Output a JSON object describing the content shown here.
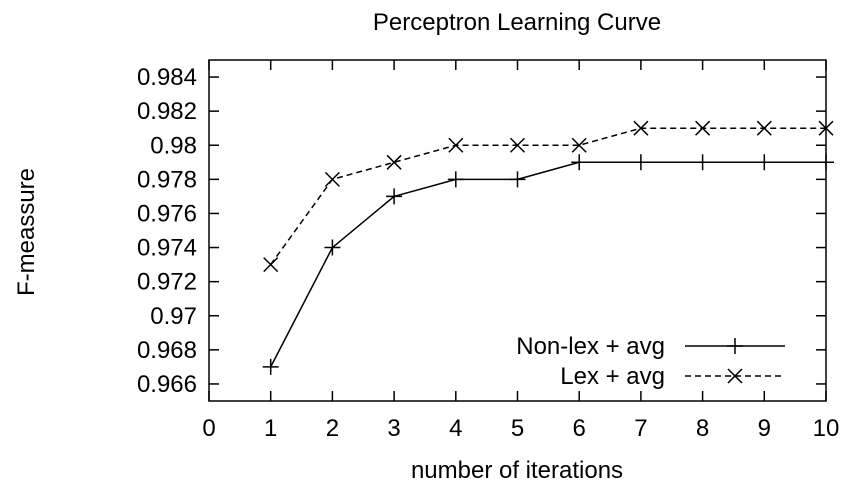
{
  "chart_data": {
    "type": "line",
    "title": "Perceptron Learning Curve",
    "xlabel": "number of iterations",
    "ylabel": "F-meassure",
    "xlim": [
      0,
      10
    ],
    "ylim": [
      0.965,
      0.985
    ],
    "x_ticks": [
      0,
      1,
      2,
      3,
      4,
      5,
      6,
      7,
      8,
      9,
      10
    ],
    "x_tick_labels": [
      "0",
      "1",
      "2",
      "3",
      "4",
      "5",
      "6",
      "7",
      "8",
      "9",
      "10"
    ],
    "y_ticks": [
      0.966,
      0.968,
      0.97,
      0.972,
      0.974,
      0.976,
      0.978,
      0.98,
      0.982,
      0.984
    ],
    "y_tick_labels": [
      "0.966",
      "0.968",
      "0.97",
      "0.972",
      "0.974",
      "0.976",
      "0.978",
      "0.98",
      "0.982",
      "0.984"
    ],
    "grid": false,
    "legend_position": "bottom-right",
    "x": [
      1,
      2,
      3,
      4,
      5,
      6,
      7,
      8,
      9,
      10
    ],
    "series": [
      {
        "name": "Non-lex + avg",
        "values": [
          0.967,
          0.974,
          0.977,
          0.978,
          0.978,
          0.979,
          0.979,
          0.979,
          0.979,
          0.979
        ],
        "line_style": "solid",
        "marker": "plus",
        "color": "#000000"
      },
      {
        "name": "Lex + avg",
        "values": [
          0.973,
          0.978,
          0.979,
          0.98,
          0.98,
          0.98,
          0.981,
          0.981,
          0.981,
          0.981
        ],
        "line_style": "dashed",
        "marker": "cross",
        "color": "#000000"
      }
    ]
  }
}
